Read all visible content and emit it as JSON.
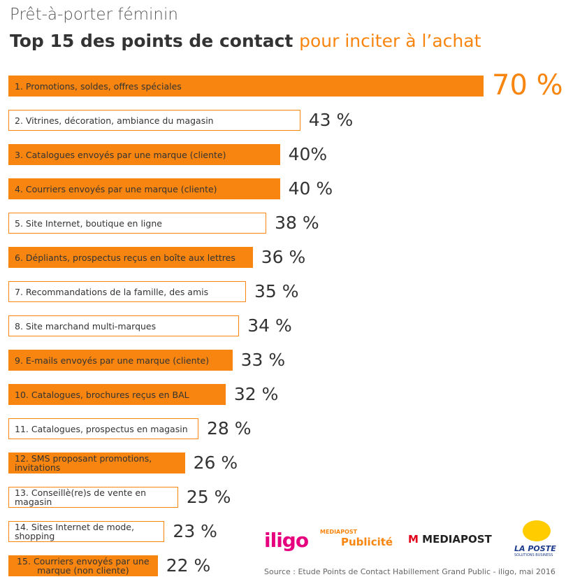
{
  "chart_data": {
    "type": "bar",
    "subtitle": "Prêt-à-porter féminin",
    "title": "Top 15 des points de contact",
    "title_highlight": "pour inciter à l’achat",
    "categories": [
      "1. Promotions, soldes, offres spéciales",
      "2. Vitrines, décoration, ambiance du magasin",
      "3. Catalogues envoyés par une marque (cliente)",
      "4. Courriers envoyés par une marque (cliente)",
      "5. Site Internet, boutique en ligne",
      "6. Dépliants, prospectus reçus en boîte aux lettres",
      "7. Recommandations de la famille, des amis",
      "8. Site marchand multi-marques",
      "9. E-mails envoyés par une marque (cliente)",
      "10. Catalogues, brochures reçus en BAL",
      "11. Catalogues, prospectus en magasin",
      "12. SMS proposant promotions, invitations",
      "13. Conseillè(re)s de vente en magasin",
      "14. Sites Internet de mode, shopping",
      "15. Courriers envoyés par une marque (non cliente)"
    ],
    "values": [
      70,
      43,
      40,
      40,
      38,
      36,
      35,
      34,
      33,
      32,
      28,
      26,
      25,
      23,
      22
    ],
    "value_labels": [
      "70 %",
      "43 %",
      "40%",
      "40 %",
      "38 %",
      "36 %",
      "35 %",
      "34 %",
      "33 %",
      "32 %",
      "28 %",
      "26 %",
      "25 %",
      "23 %",
      "22 %"
    ],
    "bar_styles": [
      "filled",
      "outline",
      "filled",
      "filled",
      "outline",
      "filled",
      "outline",
      "outline",
      "filled",
      "filled",
      "outline",
      "filled",
      "outline",
      "outline",
      "filled"
    ],
    "color": "#f7850f",
    "xlim": [
      0,
      70
    ],
    "logos": [
      "iligo",
      "MEDIAPOST",
      "Publicité",
      "MEDIAPOST",
      "LA POSTE",
      "SOLUTIONS BUSINESS"
    ],
    "source": "Source : Etude Points de Contact Habillement Grand Public - iligo, mai 2016"
  }
}
